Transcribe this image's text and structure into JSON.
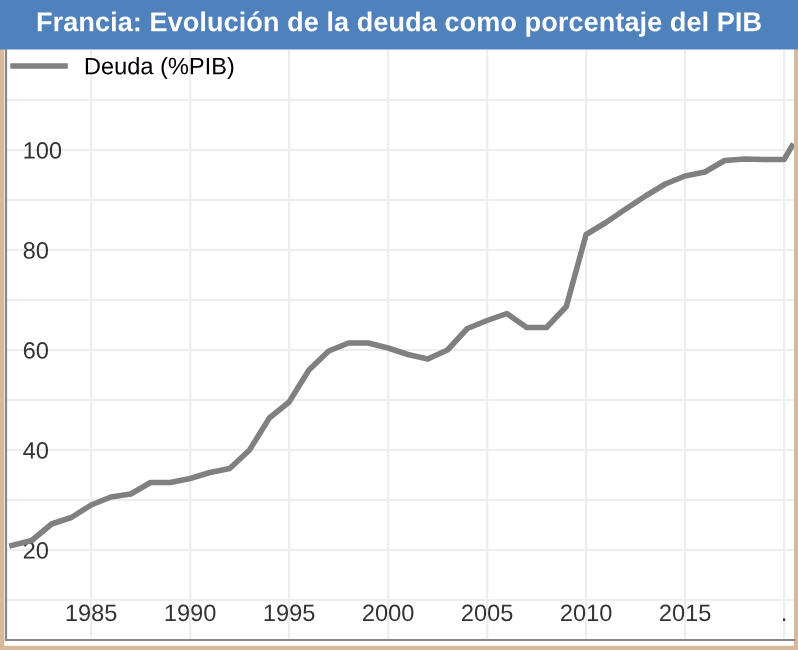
{
  "chart_data": {
    "type": "line",
    "title": "Francia: Evolución de la deuda como porcentaje del PIB",
    "x": [
      1981,
      1982,
      1983,
      1984,
      1985,
      1986,
      1987,
      1988,
      1989,
      1990,
      1991,
      1992,
      1993,
      1994,
      1995,
      1996,
      1997,
      1998,
      1999,
      2000,
      2001,
      2002,
      2003,
      2004,
      2005,
      2006,
      2007,
      2008,
      2009,
      2010,
      2011,
      2012,
      2013,
      2014,
      2015,
      2016,
      2017,
      2018,
      2019,
      2020,
      2020.4
    ],
    "series": [
      {
        "name": "Deuda (%PIB)",
        "color": "#808080",
        "values": [
          20.9,
          21.9,
          25.2,
          26.5,
          29.0,
          30.6,
          31.2,
          33.5,
          33.5,
          34.3,
          35.5,
          36.3,
          40.0,
          46.4,
          49.6,
          56.0,
          59.8,
          61.4,
          61.4,
          60.4,
          59.1,
          58.2,
          60.0,
          64.3,
          65.9,
          67.3,
          64.5,
          64.5,
          68.7,
          83.1,
          85.5,
          88.2,
          90.8,
          93.2,
          94.8,
          95.6,
          97.9,
          98.2,
          98.1,
          98.1,
          100.8
        ]
      }
    ],
    "xlim": [
      1980.7,
      2020.5
    ],
    "xticks": [
      1985,
      1990,
      1995,
      2000,
      2005,
      2010,
      2015,
      {
        "value": 2020,
        "label": "."
      }
    ],
    "ylim": [
      2,
      120
    ],
    "yticks": [
      {
        "value": 10,
        "label": null
      },
      20,
      {
        "value": 30,
        "label": null
      },
      40,
      {
        "value": 50,
        "label": null
      },
      60,
      {
        "value": 70,
        "label": null
      },
      80,
      {
        "value": 90,
        "label": null
      },
      100,
      {
        "value": 110,
        "label": null
      }
    ],
    "grid": true,
    "legend": "top left",
    "marker": "none",
    "line_style": "solid"
  }
}
